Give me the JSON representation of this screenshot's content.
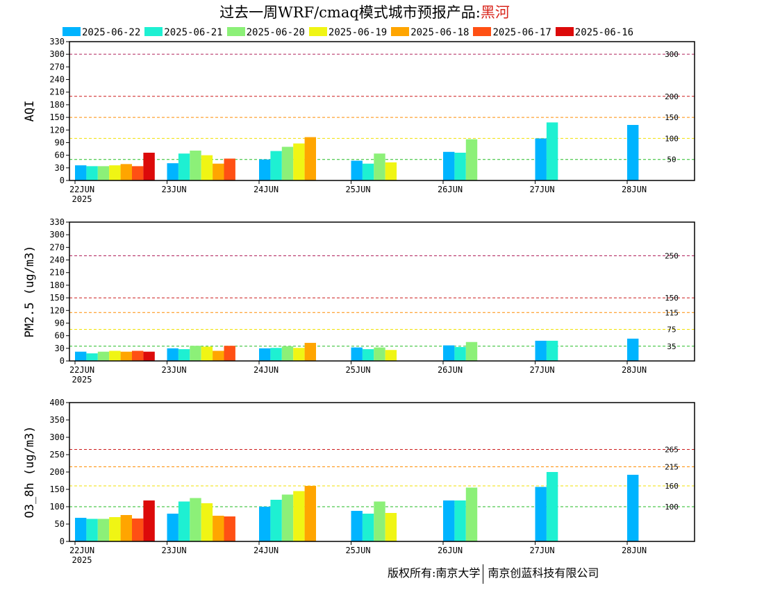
{
  "title": {
    "prefix": "过去一周WRF/cmaq模式城市预报产品:",
    "city": "黑河"
  },
  "legend": [
    {
      "label": "2025-06-22",
      "color": "#00b4ff"
    },
    {
      "label": "2025-06-21",
      "color": "#1ef0d2"
    },
    {
      "label": "2025-06-20",
      "color": "#8cf078"
    },
    {
      "label": "2025-06-19",
      "color": "#f0f514"
    },
    {
      "label": "2025-06-18",
      "color": "#ffa500"
    },
    {
      "label": "2025-06-17",
      "color": "#ff5014"
    },
    {
      "label": "2025-06-16",
      "color": "#dc0a0a"
    }
  ],
  "copyright": {
    "left": "版权所有:南京大学",
    "right": "南京创蓝科技有限公司"
  },
  "chart_data": [
    {
      "type": "bar",
      "ylabel": "AQI",
      "ylim": [
        0,
        330
      ],
      "yticks": [
        0,
        30,
        60,
        90,
        120,
        150,
        180,
        210,
        240,
        270,
        300,
        330
      ],
      "categories": [
        "22JUN",
        "23JUN",
        "24JUN",
        "25JUN",
        "26JUN",
        "27JUN",
        "28JUN"
      ],
      "year_label": "2025",
      "series": [
        {
          "name": "2025-06-22",
          "values": [
            36,
            41,
            50,
            47,
            68,
            100,
            132
          ]
        },
        {
          "name": "2025-06-21",
          "values": [
            34,
            64,
            70,
            40,
            66,
            138,
            null
          ]
        },
        {
          "name": "2025-06-20",
          "values": [
            34,
            71,
            80,
            64,
            98,
            null,
            null
          ]
        },
        {
          "name": "2025-06-19",
          "values": [
            36,
            60,
            88,
            43,
            null,
            null,
            null
          ]
        },
        {
          "name": "2025-06-18",
          "values": [
            39,
            40,
            103,
            null,
            null,
            null,
            null
          ]
        },
        {
          "name": "2025-06-17",
          "values": [
            34,
            52,
            null,
            null,
            null,
            null,
            null
          ]
        },
        {
          "name": "2025-06-16",
          "values": [
            66,
            null,
            null,
            null,
            null,
            null,
            null
          ]
        }
      ],
      "thresholds": [
        {
          "value": 300,
          "label": "300",
          "color": "#b0205a"
        },
        {
          "value": 200,
          "label": "200",
          "color": "#cc1a1a"
        },
        {
          "value": 150,
          "label": "150",
          "color": "#ff8c00"
        },
        {
          "value": 100,
          "label": "100",
          "color": "#f0e000"
        },
        {
          "value": 50,
          "label": "50",
          "color": "#22bb22"
        }
      ]
    },
    {
      "type": "bar",
      "ylabel": "PM2.5 (ug/m3)",
      "ylim": [
        0,
        330
      ],
      "yticks": [
        0,
        30,
        60,
        90,
        120,
        150,
        180,
        210,
        240,
        270,
        300,
        330
      ],
      "categories": [
        "22JUN",
        "23JUN",
        "24JUN",
        "25JUN",
        "26JUN",
        "27JUN",
        "28JUN"
      ],
      "year_label": "2025",
      "series": [
        {
          "name": "2025-06-22",
          "values": [
            22,
            30,
            30,
            32,
            37,
            48,
            53
          ]
        },
        {
          "name": "2025-06-21",
          "values": [
            18,
            28,
            31,
            28,
            33,
            48,
            null
          ]
        },
        {
          "name": "2025-06-20",
          "values": [
            22,
            36,
            35,
            32,
            45,
            null,
            null
          ]
        },
        {
          "name": "2025-06-19",
          "values": [
            24,
            34,
            31,
            26,
            null,
            null,
            null
          ]
        },
        {
          "name": "2025-06-18",
          "values": [
            22,
            24,
            43,
            null,
            null,
            null,
            null
          ]
        },
        {
          "name": "2025-06-17",
          "values": [
            24,
            36,
            null,
            null,
            null,
            null,
            null
          ]
        },
        {
          "name": "2025-06-16",
          "values": [
            22,
            null,
            null,
            null,
            null,
            null,
            null
          ]
        }
      ],
      "thresholds": [
        {
          "value": 250,
          "label": "250",
          "color": "#b0205a"
        },
        {
          "value": 150,
          "label": "150",
          "color": "#cc1a1a"
        },
        {
          "value": 115,
          "label": "115",
          "color": "#ff8c00"
        },
        {
          "value": 75,
          "label": "75",
          "color": "#f0e000"
        },
        {
          "value": 35,
          "label": "35",
          "color": "#22bb22"
        }
      ]
    },
    {
      "type": "bar",
      "ylabel": "O3_8h (ug/m3)",
      "ylim": [
        0,
        400
      ],
      "yticks": [
        0,
        50,
        100,
        150,
        200,
        250,
        300,
        350,
        400
      ],
      "categories": [
        "22JUN",
        "23JUN",
        "24JUN",
        "25JUN",
        "26JUN",
        "27JUN",
        "28JUN"
      ],
      "year_label": "2025",
      "series": [
        {
          "name": "2025-06-22",
          "values": [
            68,
            80,
            100,
            88,
            118,
            157,
            192
          ]
        },
        {
          "name": "2025-06-21",
          "values": [
            65,
            115,
            120,
            80,
            118,
            200,
            null
          ]
        },
        {
          "name": "2025-06-20",
          "values": [
            65,
            125,
            135,
            115,
            155,
            null,
            null
          ]
        },
        {
          "name": "2025-06-19",
          "values": [
            70,
            110,
            145,
            82,
            null,
            null,
            null
          ]
        },
        {
          "name": "2025-06-18",
          "values": [
            76,
            74,
            160,
            null,
            null,
            null,
            null
          ]
        },
        {
          "name": "2025-06-17",
          "values": [
            66,
            72,
            null,
            null,
            null,
            null,
            null
          ]
        },
        {
          "name": "2025-06-16",
          "values": [
            118,
            null,
            null,
            null,
            null,
            null,
            null
          ]
        }
      ],
      "thresholds": [
        {
          "value": 265,
          "label": "265",
          "color": "#cc1a1a"
        },
        {
          "value": 215,
          "label": "215",
          "color": "#ff8c00"
        },
        {
          "value": 160,
          "label": "160",
          "color": "#f0e000"
        },
        {
          "value": 100,
          "label": "100",
          "color": "#22bb22"
        }
      ]
    }
  ]
}
